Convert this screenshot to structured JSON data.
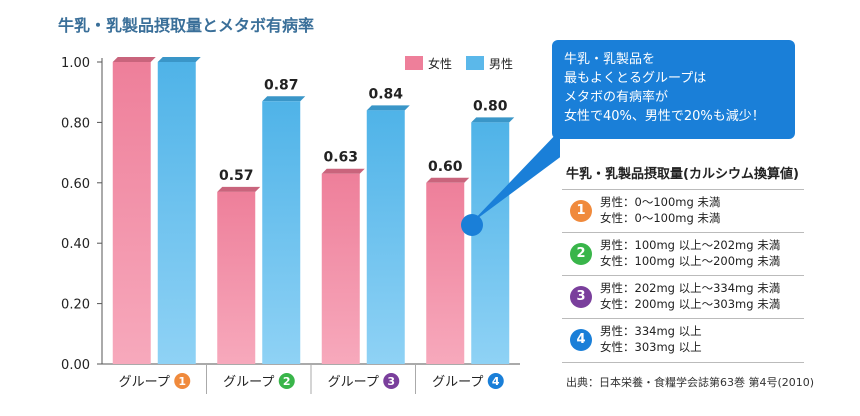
{
  "colors": {
    "female": "#ee7f9a",
    "male": "#5bb8ea",
    "accent": "#1a7fd8",
    "group1": "#f08a3c",
    "group2": "#39b54a",
    "group3": "#7a3f9c",
    "group4": "#1a7fd8"
  },
  "chart_data": {
    "type": "bar",
    "title": "牛乳・乳製品摂取量とメタボ有病率",
    "categories": [
      {
        "label": "グループ",
        "num": "1"
      },
      {
        "label": "グループ",
        "num": "2"
      },
      {
        "label": "グループ",
        "num": "3"
      },
      {
        "label": "グループ",
        "num": "4"
      }
    ],
    "series": [
      {
        "name": "女性",
        "values": [
          1.0,
          0.57,
          0.63,
          0.6
        ],
        "labels": [
          "",
          "0.57",
          "0.63",
          "0.60"
        ]
      },
      {
        "name": "男性",
        "values": [
          1.0,
          0.87,
          0.84,
          0.8
        ],
        "labels": [
          "",
          "0.87",
          "0.84",
          "0.80"
        ]
      }
    ],
    "ylim": [
      0,
      1.0
    ],
    "yticks": [
      "0.00",
      "0.20",
      "0.40",
      "0.60",
      "0.80",
      "1.00"
    ],
    "grid": false,
    "legend_position": "top-right"
  },
  "callout": {
    "lines": [
      "牛乳・乳製品を",
      "最もよくとるグループは",
      "メタボの有病率が",
      "女性で40%、男性で20%も減少！"
    ]
  },
  "intake_table": {
    "title": "牛乳・乳製品摂取量(カルシウム換算値)",
    "groups": [
      {
        "num": "1",
        "male": "男性：0～100mg 未満",
        "female": "女性：0～100mg 未満"
      },
      {
        "num": "2",
        "male": "男性：100mg 以上～202mg 未満",
        "female": "女性：100mg 以上～200mg 未満"
      },
      {
        "num": "3",
        "male": "男性：202mg 以上～334mg 未満",
        "female": "女性：200mg 以上～303mg 未満"
      },
      {
        "num": "4",
        "male": "男性：334mg 以上",
        "female": "女性：303mg 以上"
      }
    ]
  },
  "source": "出典：日本栄養・食糧学会誌第63巻 第4号(2010)"
}
